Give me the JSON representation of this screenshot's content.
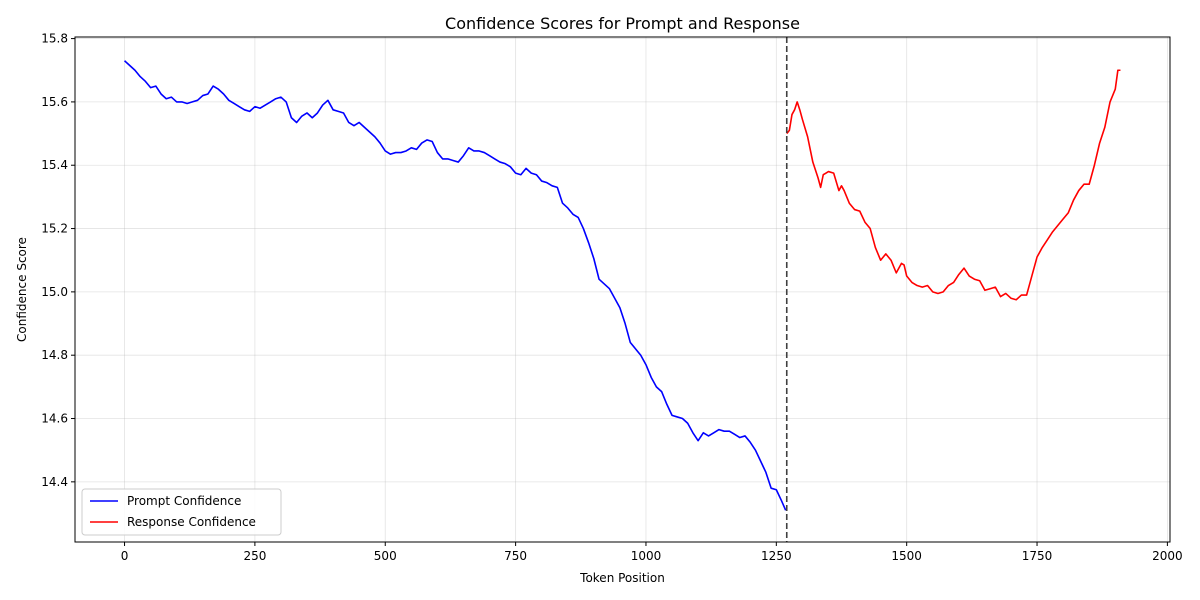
{
  "chart_data": {
    "type": "line",
    "title": "Confidence Scores for Prompt and Response",
    "xlabel": "Token Position",
    "ylabel": "Confidence Score",
    "xlim": [
      -95,
      2005
    ],
    "ylim": [
      14.21,
      15.805
    ],
    "xticks": [
      0,
      250,
      500,
      750,
      1000,
      1250,
      1500,
      1750,
      2000
    ],
    "yticks": [
      14.4,
      14.6,
      14.8,
      15.0,
      15.2,
      15.4,
      15.6,
      15.8
    ],
    "xtick_labels": [
      "0",
      "250",
      "500",
      "750",
      "1000",
      "1250",
      "1500",
      "1750",
      "2000"
    ],
    "ytick_labels": [
      "14.4",
      "14.6",
      "14.8",
      "15.0",
      "15.2",
      "15.4",
      "15.6",
      "15.8"
    ],
    "grid": true,
    "legend_position": "lower-left",
    "vline": {
      "x": 1270,
      "style": "dashed",
      "color": "#404040"
    },
    "series": [
      {
        "name": "Prompt Confidence",
        "color": "#0000ff",
        "x": [
          0,
          10,
          20,
          30,
          40,
          50,
          60,
          70,
          80,
          90,
          100,
          110,
          120,
          130,
          140,
          150,
          160,
          170,
          180,
          190,
          200,
          210,
          220,
          230,
          240,
          250,
          260,
          270,
          280,
          290,
          300,
          310,
          320,
          330,
          340,
          350,
          360,
          370,
          380,
          390,
          400,
          410,
          420,
          430,
          440,
          450,
          460,
          470,
          480,
          490,
          500,
          510,
          520,
          530,
          540,
          550,
          560,
          570,
          580,
          590,
          600,
          610,
          620,
          630,
          640,
          650,
          660,
          670,
          680,
          690,
          700,
          710,
          720,
          730,
          740,
          750,
          760,
          770,
          780,
          790,
          800,
          810,
          820,
          830,
          840,
          850,
          860,
          870,
          880,
          890,
          900,
          910,
          920,
          930,
          940,
          950,
          960,
          970,
          980,
          990,
          1000,
          1010,
          1020,
          1030,
          1040,
          1050,
          1060,
          1070,
          1080,
          1090,
          1100,
          1110,
          1120,
          1130,
          1140,
          1150,
          1160,
          1170,
          1180,
          1190,
          1200,
          1210,
          1220,
          1230,
          1240,
          1250,
          1260,
          1268
        ],
        "values": [
          15.73,
          15.715,
          15.7,
          15.68,
          15.665,
          15.645,
          15.65,
          15.625,
          15.61,
          15.615,
          15.6,
          15.6,
          15.595,
          15.6,
          15.605,
          15.62,
          15.625,
          15.65,
          15.64,
          15.625,
          15.605,
          15.595,
          15.585,
          15.575,
          15.57,
          15.585,
          15.58,
          15.59,
          15.6,
          15.61,
          15.615,
          15.6,
          15.55,
          15.535,
          15.555,
          15.565,
          15.55,
          15.565,
          15.59,
          15.605,
          15.575,
          15.57,
          15.565,
          15.535,
          15.525,
          15.535,
          15.52,
          15.505,
          15.49,
          15.47,
          15.445,
          15.435,
          15.44,
          15.44,
          15.445,
          15.455,
          15.45,
          15.47,
          15.48,
          15.475,
          15.44,
          15.42,
          15.42,
          15.415,
          15.41,
          15.43,
          15.455,
          15.445,
          15.445,
          15.44,
          15.43,
          15.42,
          15.41,
          15.405,
          15.395,
          15.375,
          15.37,
          15.39,
          15.375,
          15.37,
          15.35,
          15.345,
          15.335,
          15.33,
          15.28,
          15.265,
          15.245,
          15.235,
          15.2,
          15.155,
          15.105,
          15.04,
          15.025,
          15.01,
          14.98,
          14.95,
          14.9,
          14.84,
          14.82,
          14.8,
          14.77,
          14.73,
          14.7,
          14.685,
          14.645,
          14.61,
          14.605,
          14.6,
          14.585,
          14.555,
          14.53,
          14.555,
          14.545,
          14.555,
          14.565,
          14.56,
          14.56,
          14.55,
          14.54,
          14.545,
          14.525,
          14.5,
          14.465,
          14.43,
          14.38,
          14.375,
          14.34,
          14.31
        ]
      },
      {
        "name": "Response Confidence",
        "color": "#ff0000",
        "x": [
          1270,
          1275,
          1280,
          1285,
          1290,
          1295,
          1300,
          1310,
          1320,
          1330,
          1335,
          1340,
          1345,
          1350,
          1360,
          1370,
          1375,
          1380,
          1390,
          1400,
          1410,
          1420,
          1430,
          1440,
          1450,
          1460,
          1470,
          1480,
          1490,
          1495,
          1500,
          1510,
          1520,
          1530,
          1540,
          1550,
          1560,
          1570,
          1580,
          1590,
          1600,
          1610,
          1620,
          1630,
          1640,
          1650,
          1660,
          1670,
          1680,
          1690,
          1700,
          1710,
          1720,
          1730,
          1740,
          1750,
          1760,
          1770,
          1780,
          1790,
          1800,
          1810,
          1820,
          1830,
          1840,
          1850,
          1860,
          1870,
          1880,
          1890,
          1900,
          1905,
          1910
        ],
        "values": [
          15.5,
          15.51,
          15.56,
          15.575,
          15.6,
          15.575,
          15.545,
          15.49,
          15.41,
          15.36,
          15.33,
          15.37,
          15.375,
          15.38,
          15.375,
          15.32,
          15.335,
          15.32,
          15.28,
          15.26,
          15.255,
          15.22,
          15.2,
          15.14,
          15.1,
          15.12,
          15.1,
          15.06,
          15.09,
          15.085,
          15.05,
          15.03,
          15.02,
          15.015,
          15.02,
          15.0,
          14.995,
          15.0,
          15.02,
          15.03,
          15.055,
          15.075,
          15.05,
          15.04,
          15.035,
          15.005,
          15.01,
          15.015,
          14.985,
          14.995,
          14.98,
          14.975,
          14.99,
          14.99,
          15.05,
          15.11,
          15.14,
          15.165,
          15.19,
          15.21,
          15.23,
          15.25,
          15.29,
          15.32,
          15.34,
          15.34,
          15.4,
          15.47,
          15.52,
          15.6,
          15.64,
          15.7,
          15.7
        ]
      }
    ]
  }
}
